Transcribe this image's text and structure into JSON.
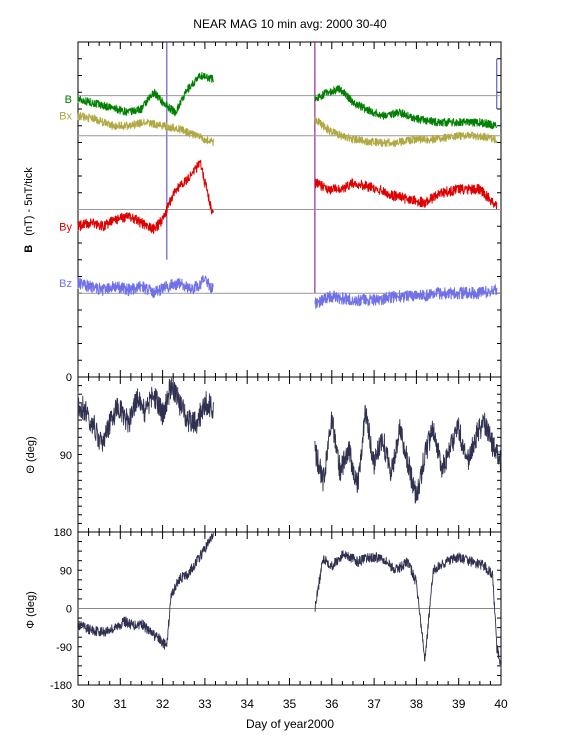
{
  "chart_data": {
    "type": "line",
    "title": "NEAR MAG 10 min avg: 2000 30-40",
    "xlabel": "Day of year2000",
    "xlim": [
      30,
      40
    ],
    "x_ticks": [
      "30",
      "31",
      "32",
      "33",
      "34",
      "35",
      "36",
      "37",
      "38",
      "39",
      "40"
    ],
    "grid": false,
    "data_gap": [
      33.2,
      35.6
    ],
    "panels": [
      {
        "id": "field",
        "ylabel_bold": "B",
        "ylabel_rest": "(nT) - 5nT/tick",
        "y_ticks": [
          "0"
        ],
        "ylim": [
          0,
          100
        ],
        "series": [
          {
            "name": "B",
            "color": "#008000",
            "baseline": 84,
            "points": [
              [
                30.0,
                83
              ],
              [
                30.3,
                82
              ],
              [
                30.6,
                81
              ],
              [
                30.9,
                80
              ],
              [
                31.2,
                79
              ],
              [
                31.5,
                80
              ],
              [
                31.8,
                85
              ],
              [
                32.0,
                82
              ],
              [
                32.3,
                79
              ],
              [
                32.6,
                86
              ],
              [
                32.9,
                90
              ],
              [
                33.2,
                89
              ],
              [
                35.6,
                83
              ],
              [
                35.9,
                85
              ],
              [
                36.2,
                86
              ],
              [
                36.5,
                82
              ],
              [
                36.8,
                80
              ],
              [
                37.2,
                78
              ],
              [
                37.6,
                79
              ],
              [
                38.0,
                77
              ],
              [
                38.5,
                76
              ],
              [
                39.0,
                76
              ],
              [
                39.5,
                76
              ],
              [
                39.9,
                75
              ]
            ]
          },
          {
            "name": "Bx",
            "color": "#b0a840",
            "baseline": 72,
            "points": [
              [
                30.0,
                78
              ],
              [
                30.4,
                77
              ],
              [
                30.8,
                75
              ],
              [
                31.2,
                75
              ],
              [
                31.6,
                76
              ],
              [
                32.0,
                75
              ],
              [
                32.4,
                74
              ],
              [
                32.8,
                72
              ],
              [
                33.2,
                70
              ],
              [
                35.6,
                77
              ],
              [
                36.0,
                73
              ],
              [
                36.5,
                71
              ],
              [
                37.0,
                70
              ],
              [
                37.5,
                70
              ],
              [
                38.0,
                71
              ],
              [
                38.5,
                71
              ],
              [
                39.0,
                72
              ],
              [
                39.5,
                72
              ],
              [
                39.9,
                71
              ]
            ]
          },
          {
            "name": "By",
            "color": "#e00000",
            "baseline": 50,
            "points": [
              [
                30.0,
                45
              ],
              [
                30.3,
                46
              ],
              [
                30.6,
                45
              ],
              [
                30.9,
                47
              ],
              [
                31.2,
                48
              ],
              [
                31.5,
                46
              ],
              [
                31.8,
                44
              ],
              [
                32.0,
                47
              ],
              [
                32.3,
                56
              ],
              [
                32.6,
                59
              ],
              [
                32.9,
                64
              ],
              [
                33.0,
                58
              ],
              [
                33.2,
                48
              ],
              [
                35.6,
                58
              ],
              [
                35.9,
                56
              ],
              [
                36.2,
                56
              ],
              [
                36.5,
                58
              ],
              [
                36.8,
                57
              ],
              [
                37.1,
                56
              ],
              [
                37.5,
                54
              ],
              [
                37.8,
                53
              ],
              [
                38.2,
                52
              ],
              [
                38.6,
                55
              ],
              [
                39.0,
                56
              ],
              [
                39.5,
                56
              ],
              [
                39.9,
                51
              ]
            ]
          },
          {
            "name": "Bz",
            "color": "#7070e8",
            "baseline": 25,
            "points": [
              [
                30.0,
                28
              ],
              [
                30.3,
                27
              ],
              [
                30.6,
                26
              ],
              [
                30.9,
                27
              ],
              [
                31.2,
                26
              ],
              [
                31.5,
                27
              ],
              [
                31.8,
                25
              ],
              [
                32.1,
                27
              ],
              [
                32.4,
                28
              ],
              [
                32.7,
                26
              ],
              [
                33.0,
                29
              ],
              [
                33.2,
                26
              ],
              [
                35.6,
                22
              ],
              [
                36.0,
                24
              ],
              [
                36.5,
                23
              ],
              [
                37.0,
                23
              ],
              [
                37.5,
                24
              ],
              [
                38.0,
                24
              ],
              [
                38.5,
                25
              ],
              [
                39.0,
                25
              ],
              [
                39.5,
                25
              ],
              [
                39.9,
                26
              ]
            ]
          }
        ],
        "spikes": [
          [
            32.1,
            35,
            100
          ],
          [
            35.6,
            25,
            100
          ],
          [
            39.9,
            80,
            95
          ]
        ]
      },
      {
        "id": "theta",
        "ylabel": "Θ (deg)",
        "y_ticks": [
          "0",
          "90"
        ],
        "y_tick_values": [
          0,
          90
        ],
        "ylim_top_to_bottom": [
          0,
          180
        ],
        "line_color": "#303050",
        "points": [
          [
            30.0,
            30
          ],
          [
            30.2,
            40
          ],
          [
            30.4,
            60
          ],
          [
            30.6,
            80
          ],
          [
            30.8,
            45
          ],
          [
            31.0,
            35
          ],
          [
            31.2,
            55
          ],
          [
            31.4,
            25
          ],
          [
            31.6,
            40
          ],
          [
            31.8,
            20
          ],
          [
            32.0,
            45
          ],
          [
            32.2,
            10
          ],
          [
            32.4,
            30
          ],
          [
            32.6,
            50
          ],
          [
            32.8,
            55
          ],
          [
            33.0,
            30
          ],
          [
            33.2,
            35
          ],
          [
            35.6,
            85
          ],
          [
            35.8,
            120
          ],
          [
            36.0,
            50
          ],
          [
            36.2,
            110
          ],
          [
            36.4,
            80
          ],
          [
            36.6,
            130
          ],
          [
            36.8,
            40
          ],
          [
            37.0,
            100
          ],
          [
            37.2,
            70
          ],
          [
            37.4,
            115
          ],
          [
            37.6,
            60
          ],
          [
            37.8,
            100
          ],
          [
            38.0,
            140
          ],
          [
            38.2,
            90
          ],
          [
            38.4,
            60
          ],
          [
            38.6,
            110
          ],
          [
            38.8,
            80
          ],
          [
            39.0,
            60
          ],
          [
            39.2,
            100
          ],
          [
            39.4,
            70
          ],
          [
            39.6,
            50
          ],
          [
            39.8,
            80
          ],
          [
            40.0,
            100
          ]
        ]
      },
      {
        "id": "phi",
        "ylabel": "Φ (deg)",
        "y_ticks": [
          "180",
          "90",
          "0",
          "-90",
          "-180"
        ],
        "y_tick_values": [
          180,
          90,
          0,
          -90,
          -180
        ],
        "ylim": [
          -180,
          180
        ],
        "zero_line": true,
        "line_color": "#303050",
        "points": [
          [
            30.0,
            -40
          ],
          [
            30.3,
            -50
          ],
          [
            30.6,
            -55
          ],
          [
            30.9,
            -45
          ],
          [
            31.1,
            -30
          ],
          [
            31.3,
            -40
          ],
          [
            31.5,
            -35
          ],
          [
            31.7,
            -55
          ],
          [
            31.9,
            -70
          ],
          [
            32.1,
            -90
          ],
          [
            32.2,
            30
          ],
          [
            32.4,
            70
          ],
          [
            32.6,
            80
          ],
          [
            32.8,
            110
          ],
          [
            33.0,
            140
          ],
          [
            33.2,
            175
          ],
          [
            35.6,
            0
          ],
          [
            35.8,
            120
          ],
          [
            36.0,
            100
          ],
          [
            36.3,
            130
          ],
          [
            36.6,
            110
          ],
          [
            36.9,
            120
          ],
          [
            37.2,
            120
          ],
          [
            37.5,
            90
          ],
          [
            37.8,
            110
          ],
          [
            38.0,
            60
          ],
          [
            38.2,
            -120
          ],
          [
            38.4,
            90
          ],
          [
            38.7,
            110
          ],
          [
            39.0,
            120
          ],
          [
            39.3,
            110
          ],
          [
            39.6,
            100
          ],
          [
            39.8,
            80
          ],
          [
            39.9,
            -90
          ],
          [
            40.0,
            -140
          ]
        ]
      }
    ]
  }
}
